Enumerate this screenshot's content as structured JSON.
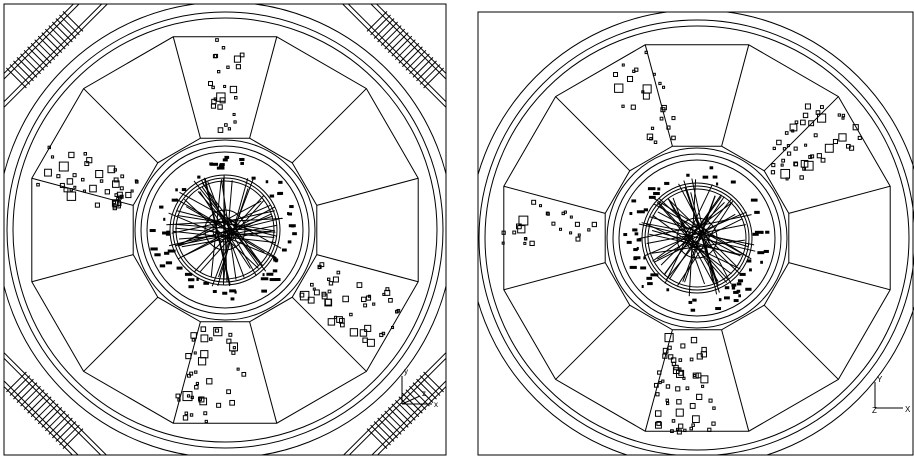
{
  "panels": [
    {
      "axis_labels": {
        "y": "y",
        "z": "z",
        "x": "x"
      }
    },
    {
      "axis_labels": {
        "y": "Y",
        "z": "Z",
        "x": "X"
      }
    }
  ]
}
